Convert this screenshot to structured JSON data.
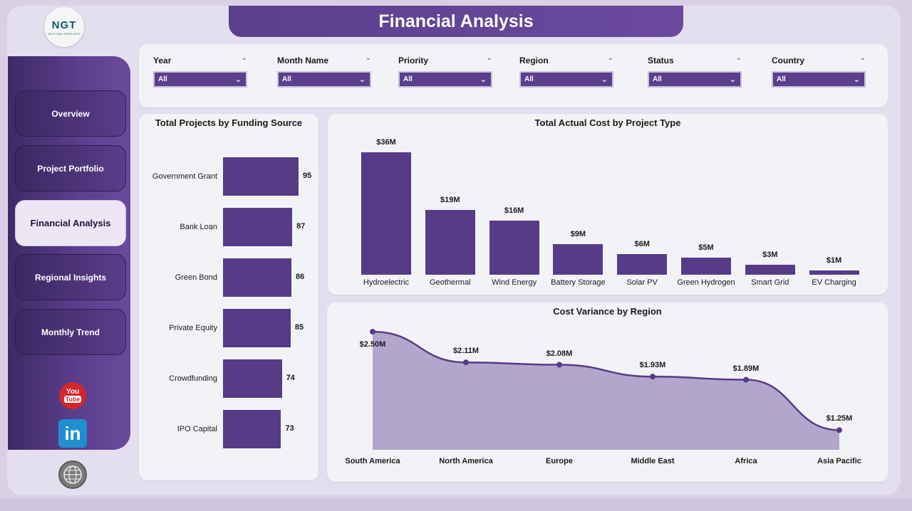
{
  "app": {
    "title": "Financial Analysis",
    "logo_text": "NGT",
    "logo_sub": "NEXT GEN TEMPLATES"
  },
  "sidebar": {
    "items": [
      {
        "label": "Overview",
        "active": false
      },
      {
        "label": "Project Portfolio",
        "active": false
      },
      {
        "label": "Financial Analysis",
        "active": true
      },
      {
        "label": "Regional Insights",
        "active": false
      },
      {
        "label": "Monthly Trend",
        "active": false
      }
    ],
    "social": {
      "youtube_top": "You",
      "youtube_bottom": "Tube",
      "linkedin": "in"
    }
  },
  "filters": [
    {
      "label": "Year",
      "value": "All"
    },
    {
      "label": "Month Name",
      "value": "All"
    },
    {
      "label": "Priority",
      "value": "All"
    },
    {
      "label": "Region",
      "value": "All"
    },
    {
      "label": "Status",
      "value": "All"
    },
    {
      "label": "Country",
      "value": "All"
    }
  ],
  "colors": {
    "accent": "#573b86",
    "sidebar": "#5d3f8e",
    "area_fill": "#b3a6cc",
    "line": "#573b86"
  },
  "chart_data": [
    {
      "type": "bar",
      "orientation": "horizontal",
      "title": "Total Projects by Funding Source",
      "categories": [
        "Government Grant",
        "Bank Loan",
        "Green Bond",
        "Private Equity",
        "Crowdfunding",
        "IPO Capital"
      ],
      "values": [
        95,
        87,
        86,
        85,
        74,
        73
      ],
      "labels": [
        "95",
        "87",
        "86",
        "85",
        "74",
        "73"
      ]
    },
    {
      "type": "bar",
      "title": "Total Actual Cost by Project Type",
      "categories": [
        "Hydroelectric",
        "Geothermal",
        "Wind Energy",
        "Battery Storage",
        "Solar PV",
        "Green Hydrogen",
        "Smart Grid",
        "EV Charging"
      ],
      "values": [
        36,
        19,
        16,
        9,
        6,
        5,
        3,
        1
      ],
      "labels": [
        "$36M",
        "$19M",
        "$16M",
        "$9M",
        "$6M",
        "$5M",
        "$3M",
        "$1M"
      ]
    },
    {
      "type": "area",
      "title": "Cost Variance by Region",
      "categories": [
        "South America",
        "North America",
        "Europe",
        "Middle East",
        "Africa",
        "Asia Pacific"
      ],
      "values": [
        2.5,
        2.11,
        2.08,
        1.93,
        1.89,
        1.25
      ],
      "labels": [
        "$2.50M",
        "$2.11M",
        "$2.08M",
        "$1.93M",
        "$1.89M",
        "$1.25M"
      ]
    }
  ]
}
